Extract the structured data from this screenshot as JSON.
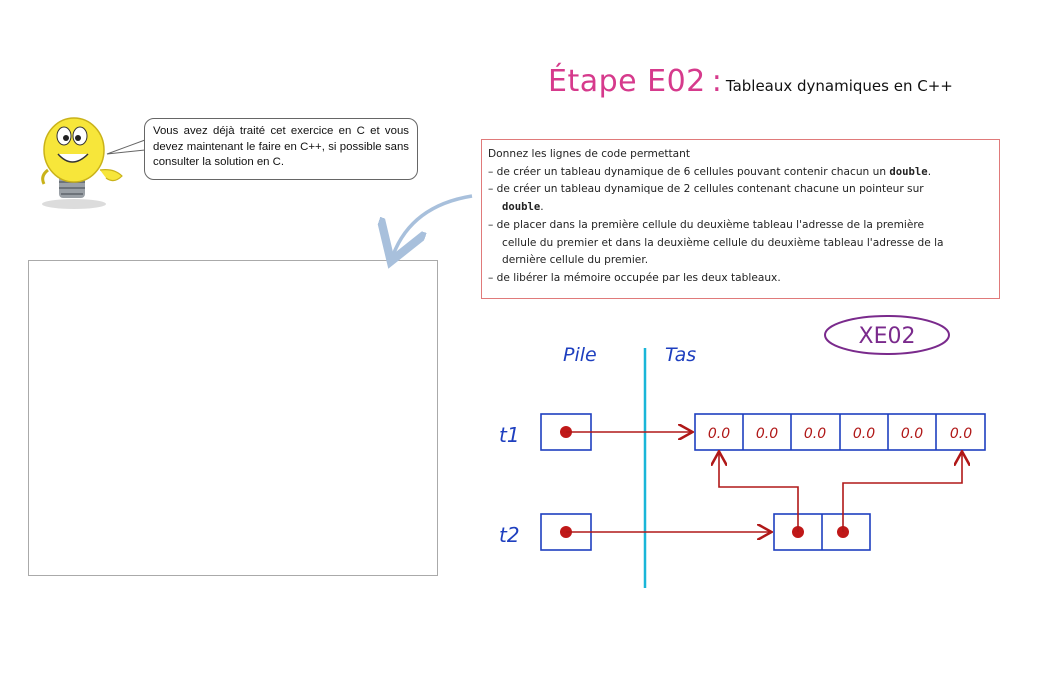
{
  "title": {
    "stage": "Étape E02",
    "colon": ":",
    "subtitle": "Tableaux dynamiques en C++"
  },
  "bubble": {
    "text": "Vous avez déjà traité cet exercice en C et vous devez maintenant le faire en C++, si possible sans consulter la solution en C."
  },
  "instructions": {
    "intro": "Donnez les lignes de code permettant",
    "items": [
      {
        "text": "de créer un tableau dynamique de 6 cellules pouvant contenir chacun un ",
        "code": "double",
        "after": "."
      },
      {
        "text": "de créer un tableau dynamique de 2 cellules contenant chacune un pointeur sur",
        "cont_code": "double",
        "cont_after": "."
      },
      {
        "text": "de placer dans la première cellule du deuxième tableau l'adresse de la première",
        "cont1": "cellule du premier et dans la deuxième cellule du deuxième tableau l'adresse de la",
        "cont2": "dernière cellule du premier."
      },
      {
        "text": "de libérer la mémoire occupée par les deux tableaux."
      }
    ],
    "bullet": "–"
  },
  "diagram": {
    "badge": "XE02",
    "pile_label": "Pile",
    "tas_label": "Tas",
    "t1_label": "t1",
    "t2_label": "t2",
    "cells": [
      "0.0",
      "0.0",
      "0.0",
      "0.0",
      "0.0",
      "0.0"
    ]
  },
  "colors": {
    "title": "#d63a8c",
    "handwriting_blue": "#1e3fbf",
    "arrow_red": "#b01818",
    "divider_cyan": "#19b6d8",
    "badge_purple": "#7a2a8c",
    "curve_arrow": "#a8c0dc"
  }
}
